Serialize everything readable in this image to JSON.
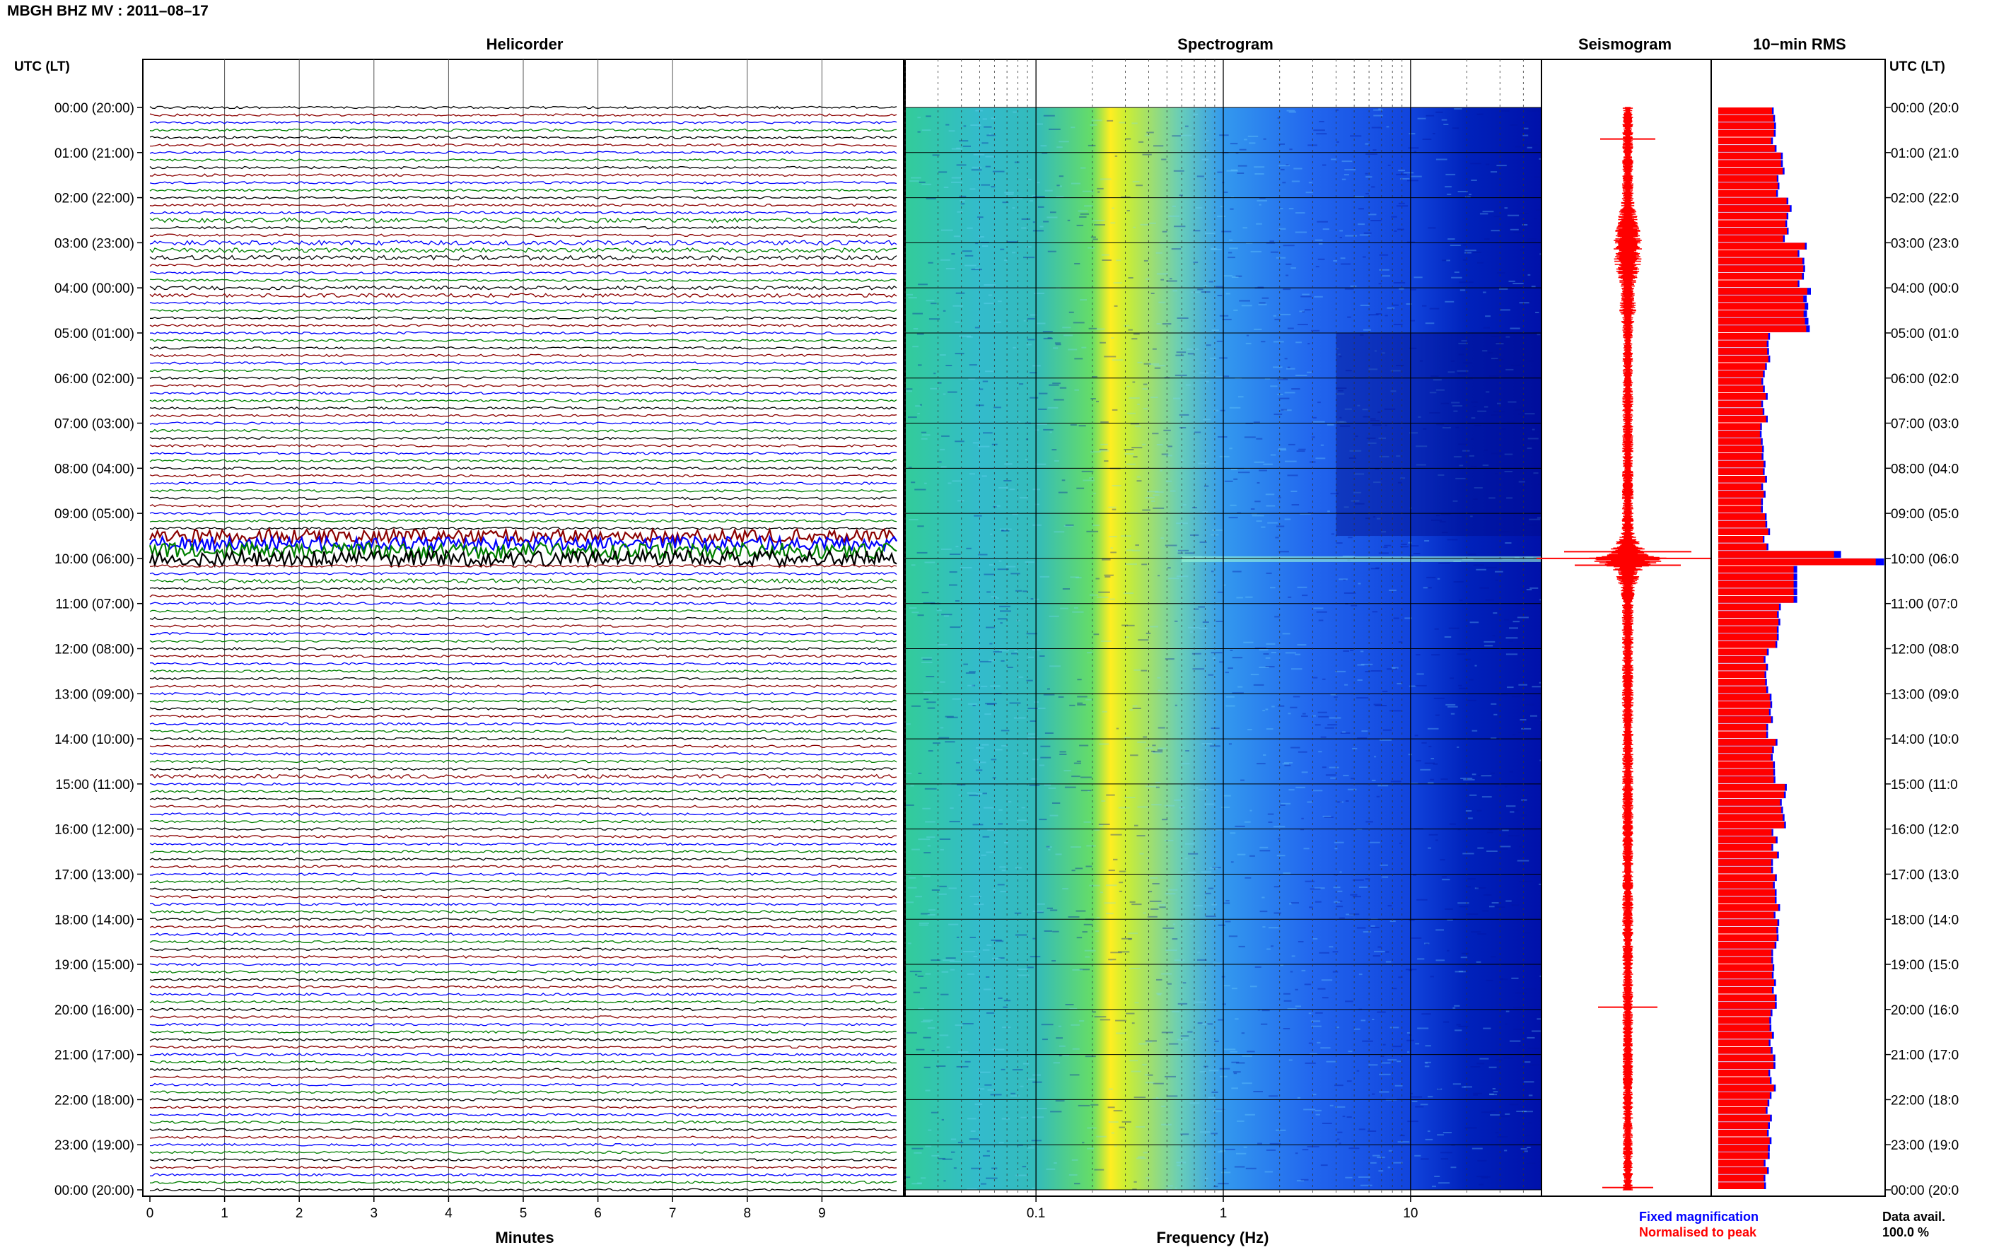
{
  "title": "MBGH BHZ MV : 2011–08–17",
  "left_header": "UTC (LT)",
  "right_header": "UTC (LT)",
  "panels": {
    "helicorder": "Helicorder",
    "spectrogram": "Spectrogram",
    "seismogram": "Seismogram",
    "rms": "10−min RMS"
  },
  "time_labels_left": [
    "00:00 (20:00)",
    "01:00 (21:00)",
    "02:00 (22:00)",
    "03:00 (23:00)",
    "04:00 (00:00)",
    "05:00 (01:00)",
    "06:00 (02:00)",
    "07:00 (03:00)",
    "08:00 (04:00)",
    "09:00 (05:00)",
    "10:00 (06:00)",
    "11:00 (07:00)",
    "12:00 (08:00)",
    "13:00 (09:00)",
    "14:00 (10:00)",
    "15:00 (11:00)",
    "16:00 (12:00)",
    "17:00 (13:00)",
    "18:00 (14:00)",
    "19:00 (15:00)",
    "20:00 (16:00)",
    "21:00 (17:00)",
    "22:00 (18:00)",
    "23:00 (19:00)",
    "00:00 (20:00)"
  ],
  "time_labels_right": [
    "00:00 (20:0",
    "01:00 (21:0",
    "02:00 (22:0",
    "03:00 (23:0",
    "04:00 (00:0",
    "05:00 (01:0",
    "06:00 (02:0",
    "07:00 (03:0",
    "08:00 (04:0",
    "09:00 (05:0",
    "10:00 (06:0",
    "11:00 (07:0",
    "12:00 (08:0",
    "13:00 (09:0",
    "14:00 (10:0",
    "15:00 (11:0",
    "16:00 (12:0",
    "17:00 (13:0",
    "18:00 (14:0",
    "19:00 (15:0",
    "20:00 (16:0",
    "21:00 (17:0",
    "22:00 (18:0",
    "23:00 (19:0",
    "00:00 (20:0"
  ],
  "helicorder_xticks": [
    "0",
    "1",
    "2",
    "3",
    "4",
    "5",
    "6",
    "7",
    "8",
    "9"
  ],
  "helicorder_xlabel": "Minutes",
  "spectrogram_xticks": [
    "0.1",
    "1",
    "10"
  ],
  "spectrogram_xlabel": "Frequency (Hz)",
  "legend": {
    "fixed": "Fixed magnification",
    "normalised": "Normalised to peak"
  },
  "data_avail": {
    "label": "Data avail.",
    "value": "100.0 %"
  },
  "colors": {
    "trace_cycle": [
      "#000000",
      "#8b0000",
      "#0000ff",
      "#008000"
    ],
    "seismogram": "#ff0000",
    "rms_fixed": "#0000ff",
    "rms_norm": "#ff0000",
    "legend_fixed": "#0000ff",
    "legend_normalised": "#ff0000"
  },
  "chart_data": [
    {
      "type": "line",
      "name": "helicorder",
      "x_unit": "minutes",
      "xlim": [
        0,
        10
      ],
      "trace_minutes": 10,
      "traces_per_hour": 6,
      "hours": 24,
      "event_rows": [
        {
          "hour": 9,
          "row": 3,
          "amp": 6
        },
        {
          "hour": 9,
          "row": 4,
          "amp": 6
        },
        {
          "hour": 9,
          "row": 5,
          "amp": 7
        },
        {
          "hour": 10,
          "row": 0,
          "amp": 7
        },
        {
          "hour": 2,
          "row": 3,
          "amp": 2
        },
        {
          "hour": 3,
          "row": 0,
          "amp": 2
        },
        {
          "hour": 3,
          "row": 1,
          "amp": 2
        },
        {
          "hour": 3,
          "row": 2,
          "amp": 2
        },
        {
          "hour": 4,
          "row": 0,
          "amp": 1.6
        },
        {
          "hour": 4,
          "row": 1,
          "amp": 1.6
        },
        {
          "hour": 14,
          "row": 5,
          "amp": 1.6
        },
        {
          "hour": 10,
          "row": 3,
          "amp": 1.8
        }
      ]
    },
    {
      "type": "heatmap",
      "name": "spectrogram",
      "x_scale": "log",
      "xlim": [
        0.02,
        50
      ],
      "xticks": [
        0.1,
        1,
        10
      ],
      "profile": [
        {
          "f": 0.02,
          "color": "#33cc99"
        },
        {
          "f": 0.05,
          "color": "#33bbcc"
        },
        {
          "f": 0.1,
          "color": "#33bbbb"
        },
        {
          "f": 0.2,
          "color": "#66dd66"
        },
        {
          "f": 0.25,
          "color": "#ffee22"
        },
        {
          "f": 0.3,
          "color": "#ccee33"
        },
        {
          "f": 0.6,
          "color": "#66ccbb"
        },
        {
          "f": 1.0,
          "color": "#3399ee"
        },
        {
          "f": 3.0,
          "color": "#2266ee"
        },
        {
          "f": 10,
          "color": "#1144dd"
        },
        {
          "f": 20,
          "color": "#0022bb"
        },
        {
          "f": 50,
          "color": "#0011aa"
        }
      ]
    },
    {
      "type": "line",
      "name": "seismogram",
      "hours": 24,
      "amplitude_profile": [
        [
          0,
          0.3
        ],
        [
          2,
          0.35
        ],
        [
          2.5,
          0.6
        ],
        [
          3.0,
          0.9
        ],
        [
          3.5,
          0.8
        ],
        [
          4.0,
          0.4
        ],
        [
          4.5,
          0.5
        ],
        [
          5.0,
          0.3
        ],
        [
          9.4,
          0.35
        ],
        [
          9.9,
          1.2
        ],
        [
          10.0,
          2.5
        ],
        [
          10.2,
          1.0
        ],
        [
          10.6,
          0.5
        ],
        [
          11,
          0.35
        ],
        [
          24,
          0.3
        ]
      ]
    },
    {
      "type": "bar",
      "name": "10-min RMS",
      "orientation": "horizontal",
      "bins_per_hour": 6,
      "hours": 24,
      "hourly_fixed": [
        0.32,
        0.36,
        0.4,
        0.48,
        0.52,
        0.28,
        0.27,
        0.26,
        0.27,
        0.28,
        1.0,
        0.34,
        0.28,
        0.3,
        0.33,
        0.37,
        0.33,
        0.34,
        0.33,
        0.32,
        0.3,
        0.31,
        0.29,
        0.28
      ],
      "hourly_norm": [
        0.31,
        0.35,
        0.39,
        0.47,
        0.5,
        0.27,
        0.26,
        0.25,
        0.26,
        0.27,
        0.95,
        0.33,
        0.27,
        0.29,
        0.32,
        0.36,
        0.32,
        0.33,
        0.32,
        0.31,
        0.29,
        0.3,
        0.28,
        0.27
      ],
      "xlim": [
        0,
        1
      ]
    }
  ]
}
